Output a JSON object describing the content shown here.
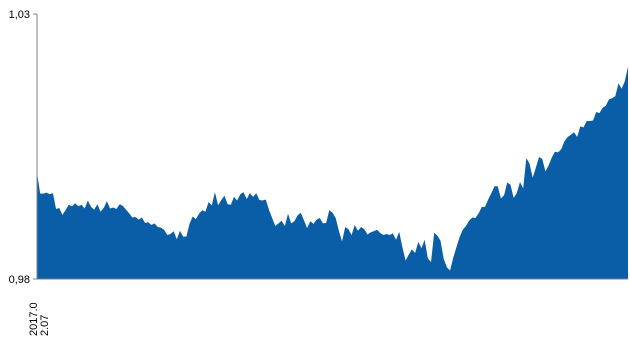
{
  "chart_data": {
    "type": "area",
    "title": "",
    "xlabel": "",
    "ylabel": "",
    "ylim": [
      0.98,
      1.03
    ],
    "y_ticks": [
      {
        "value": 0.98,
        "label": "0,98"
      },
      {
        "value": 1.03,
        "label": "1,03"
      }
    ],
    "x_tick": {
      "line1": "2017.0",
      "line2": "2.07"
    },
    "grid": false,
    "legend": "none",
    "fill_color": "#0a5ea8",
    "axis_color": "#808080",
    "series": [
      {
        "values": [
          1.0001,
          0.9961,
          0.9961,
          0.9963,
          0.996,
          0.9962,
          0.9932,
          0.9934,
          0.9921,
          0.993,
          0.994,
          0.9937,
          0.9943,
          0.9937,
          0.994,
          0.9933,
          0.9948,
          0.9936,
          0.9931,
          0.9941,
          0.9927,
          0.9934,
          0.9947,
          0.9933,
          0.9935,
          0.9932,
          0.9941,
          0.9938,
          0.9931,
          0.9924,
          0.9916,
          0.9917,
          0.9912,
          0.9916,
          0.9906,
          0.9907,
          0.9902,
          0.9905,
          0.9898,
          0.9897,
          0.9893,
          0.9883,
          0.9885,
          0.989,
          0.9875,
          0.9891,
          0.988,
          0.988,
          0.9904,
          0.9918,
          0.9913,
          0.9923,
          0.993,
          0.9927,
          0.9945,
          0.9939,
          0.9964,
          0.9939,
          0.9949,
          0.9957,
          0.9941,
          0.994,
          0.9955,
          0.9948,
          0.996,
          0.9964,
          0.9951,
          0.9962,
          0.9955,
          0.9962,
          0.9949,
          0.9948,
          0.995,
          0.9931,
          0.9915,
          0.99,
          0.9905,
          0.991,
          0.99,
          0.9923,
          0.9905,
          0.9909,
          0.992,
          0.9925,
          0.9911,
          0.9896,
          0.9909,
          0.9904,
          0.9912,
          0.9915,
          0.9905,
          0.9906,
          0.993,
          0.9925,
          0.9915,
          0.9891,
          0.9871,
          0.9898,
          0.9894,
          0.9883,
          0.9902,
          0.9891,
          0.9898,
          0.9894,
          0.9884,
          0.9888,
          0.989,
          0.9893,
          0.9887,
          0.9883,
          0.9885,
          0.9883,
          0.9886,
          0.9874,
          0.9889,
          0.986,
          0.9835,
          0.9846,
          0.9856,
          0.9849,
          0.987,
          0.9858,
          0.9874,
          0.9839,
          0.9832,
          0.9887,
          0.9882,
          0.9872,
          0.9838,
          0.9822,
          0.9816,
          0.984,
          0.986,
          0.9879,
          0.9893,
          0.99,
          0.991,
          0.9916,
          0.9915,
          0.9924,
          0.9936,
          0.9936,
          0.995,
          0.9962,
          0.9975,
          0.9975,
          0.9952,
          0.9958,
          0.9982,
          0.9978,
          0.9953,
          0.9962,
          0.9983,
          0.9971,
          1.0028,
          1.0018,
          0.9991,
          1.001,
          1.003,
          1.0027,
          1.0003,
          1.0014,
          1.0029,
          1.004,
          1.0039,
          1.0045,
          1.006,
          1.0068,
          1.0072,
          1.0077,
          1.0068,
          1.0088,
          1.0086,
          1.0098,
          1.0098,
          1.0099,
          1.0115,
          1.0113,
          1.0123,
          1.0127,
          1.0139,
          1.0141,
          1.0145,
          1.0169,
          1.0159,
          1.0173,
          1.0201
        ]
      }
    ]
  }
}
